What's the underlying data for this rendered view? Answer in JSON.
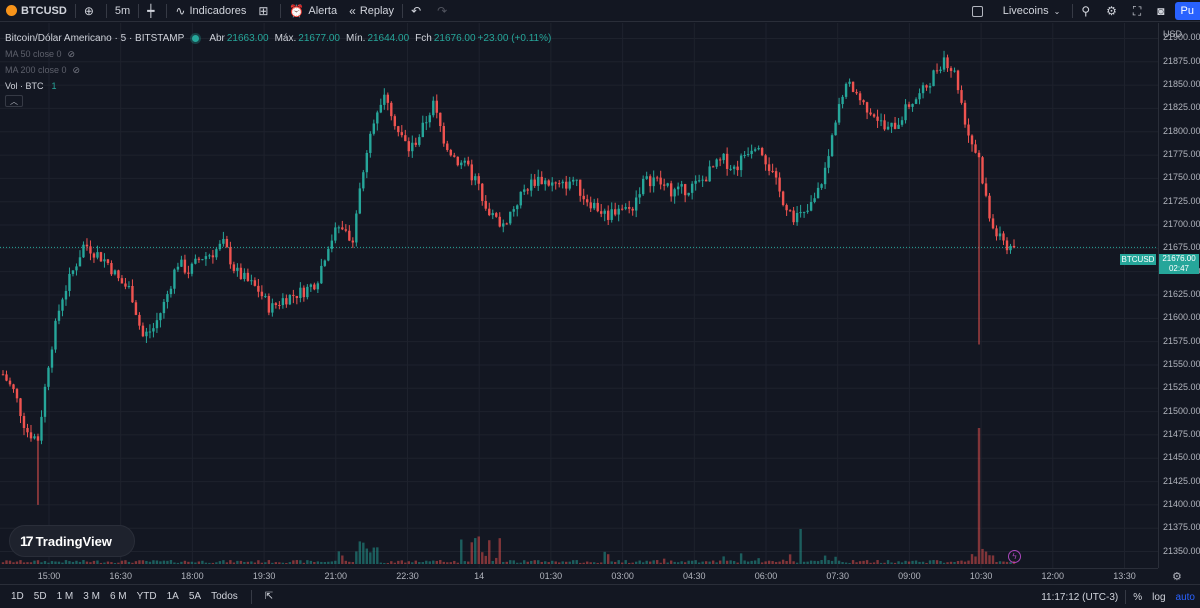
{
  "toolbar": {
    "symbol": "BTCUSD",
    "interval": "5m",
    "indicators_label": "Indicadores",
    "alert_label": "Alerta",
    "replay_label": "Replay",
    "layout_name": "Livecoins",
    "publish_label": "Pu"
  },
  "legend": {
    "title": "Bitcoin/Dólar Americano · 5 · BITSTAMP",
    "open_label": "Abr",
    "open": "21663.00",
    "high_label": "Máx.",
    "high": "21677.00",
    "low_label": "Mín.",
    "low": "21644.00",
    "close_label": "Fch",
    "close": "21676.00",
    "change": "+23.00 (+0.11%)",
    "ma50": "MA 50 close 0",
    "ma200": "MA 200 close 0",
    "volume": "Vol · BTC",
    "volume_value": "1"
  },
  "price_axis": {
    "currency": "USD",
    "labels": [
      "21900.00",
      "21875.00",
      "21850.00",
      "21825.00",
      "21800.00",
      "21775.00",
      "21750.00",
      "21725.00",
      "21700.00",
      "21675.00",
      "21650.00",
      "21625.00",
      "21600.00",
      "21575.00",
      "21550.00",
      "21525.00",
      "21500.00",
      "21475.00",
      "21450.00",
      "21425.00",
      "21400.00",
      "21375.00",
      "21350.00"
    ],
    "current_symbol": "BTCUSD",
    "current_price": "21676.00",
    "countdown": "02:47"
  },
  "time_axis": {
    "labels": [
      "15:00",
      "16:30",
      "18:00",
      "19:30",
      "21:00",
      "22:30",
      "14",
      "01:30",
      "03:00",
      "04:30",
      "06:00",
      "07:30",
      "09:00",
      "10:30",
      "12:00",
      "13:30"
    ]
  },
  "bottom_bar": {
    "ranges": [
      "1D",
      "5D",
      "1 M",
      "3 M",
      "6 M",
      "YTD",
      "1A",
      "5A",
      "Todos"
    ],
    "clock": "11:17:12 (UTC-3)",
    "percent": "%",
    "log": "log",
    "auto": "auto"
  },
  "logo_text": "TradingView",
  "colors": {
    "up": "#26a69a",
    "down": "#ef5350",
    "bg": "#131722",
    "grid": "#1e222d"
  },
  "chart_data": {
    "type": "candlestick",
    "interval": "5m",
    "ylim": [
      21342,
      21908
    ],
    "current_price": 21676,
    "path": [
      21540,
      21520,
      21480,
      21470,
      21560,
      21620,
      21650,
      21680,
      21670,
      21660,
      21640,
      21630,
      21580,
      21590,
      21620,
      21660,
      21650,
      21665,
      21670,
      21680,
      21650,
      21640,
      21630,
      21610,
      21620,
      21625,
      21630,
      21640,
      21680,
      21700,
      21680,
      21760,
      21820,
      21840,
      21800,
      21780,
      21800,
      21830,
      21790,
      21770,
      21760,
      21740,
      21710,
      21700,
      21720,
      21740,
      21750,
      21745,
      21740,
      21750,
      21730,
      21720,
      21710,
      21720,
      21715,
      21745,
      21750,
      21740,
      21735,
      21740,
      21745,
      21760,
      21770,
      21760,
      21780,
      21790,
      21760,
      21730,
      21710,
      21710,
      21730,
      21770,
      21840,
      21850,
      21830,
      21820,
      21800,
      21810,
      21830,
      21840,
      21860,
      21880,
      21860,
      21800,
      21770,
      21700,
      21680,
      21676
    ],
    "volume_spike": {
      "time": "10:30",
      "relative": 1.0
    }
  }
}
